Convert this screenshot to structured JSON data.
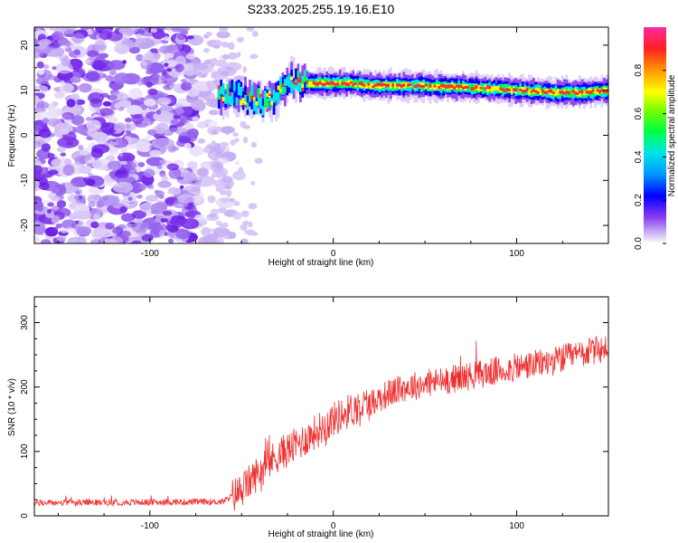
{
  "title": "S233.2025.255.19.16.E10",
  "chart_data": [
    {
      "type": "heatmap",
      "name": "spectrogram",
      "xlabel": "Height of straight line (km)",
      "ylabel": "Frequency (Hz)",
      "xlim": [
        -163,
        150
      ],
      "ylim": [
        -24,
        24
      ],
      "xticks": [
        -100,
        0,
        100
      ],
      "yticks": [
        -20,
        -10,
        0,
        10,
        20
      ],
      "noise_region_x": [
        -163,
        -55
      ],
      "signal_track": [
        {
          "x": -63,
          "y": 9
        },
        {
          "x": -55,
          "y": 9
        },
        {
          "x": -45,
          "y": 8
        },
        {
          "x": -38,
          "y": 7
        },
        {
          "x": -33,
          "y": 8
        },
        {
          "x": -28,
          "y": 11
        },
        {
          "x": -22,
          "y": 12
        },
        {
          "x": -15,
          "y": 11.5
        },
        {
          "x": -5,
          "y": 11.5
        },
        {
          "x": 0,
          "y": 11.5
        },
        {
          "x": 10,
          "y": 11.5
        },
        {
          "x": 20,
          "y": 11
        },
        {
          "x": 40,
          "y": 11
        },
        {
          "x": 60,
          "y": 10.8
        },
        {
          "x": 80,
          "y": 10.5
        },
        {
          "x": 100,
          "y": 10
        },
        {
          "x": 120,
          "y": 9.5
        },
        {
          "x": 135,
          "y": 9.5
        },
        {
          "x": 150,
          "y": 10
        }
      ],
      "colorbar": {
        "label": "Normalized spectral amplitude",
        "ticks": [
          "0.0",
          "0.2",
          "0.4",
          "0.6",
          "0.8"
        ],
        "range": [
          0,
          1
        ]
      }
    },
    {
      "type": "line",
      "name": "snr",
      "xlabel": "Height of straight line (km)",
      "ylabel": "SNR (10 * v/v)",
      "xlim": [
        -163,
        150
      ],
      "ylim": [
        0,
        340
      ],
      "xticks": [
        -100,
        0,
        100
      ],
      "yticks": [
        0,
        100,
        200,
        300
      ],
      "color": "#f03030",
      "trend": [
        {
          "x": -163,
          "y": 20
        },
        {
          "x": -60,
          "y": 22
        },
        {
          "x": -50,
          "y": 40
        },
        {
          "x": -40,
          "y": 70
        },
        {
          "x": -30,
          "y": 95
        },
        {
          "x": -20,
          "y": 110
        },
        {
          "x": -10,
          "y": 130
        },
        {
          "x": 0,
          "y": 150
        },
        {
          "x": 10,
          "y": 165
        },
        {
          "x": 20,
          "y": 175
        },
        {
          "x": 30,
          "y": 190
        },
        {
          "x": 40,
          "y": 200
        },
        {
          "x": 60,
          "y": 210
        },
        {
          "x": 80,
          "y": 220
        },
        {
          "x": 100,
          "y": 230
        },
        {
          "x": 120,
          "y": 240
        },
        {
          "x": 140,
          "y": 255
        },
        {
          "x": 150,
          "y": 260
        }
      ],
      "points": 1200
    }
  ]
}
